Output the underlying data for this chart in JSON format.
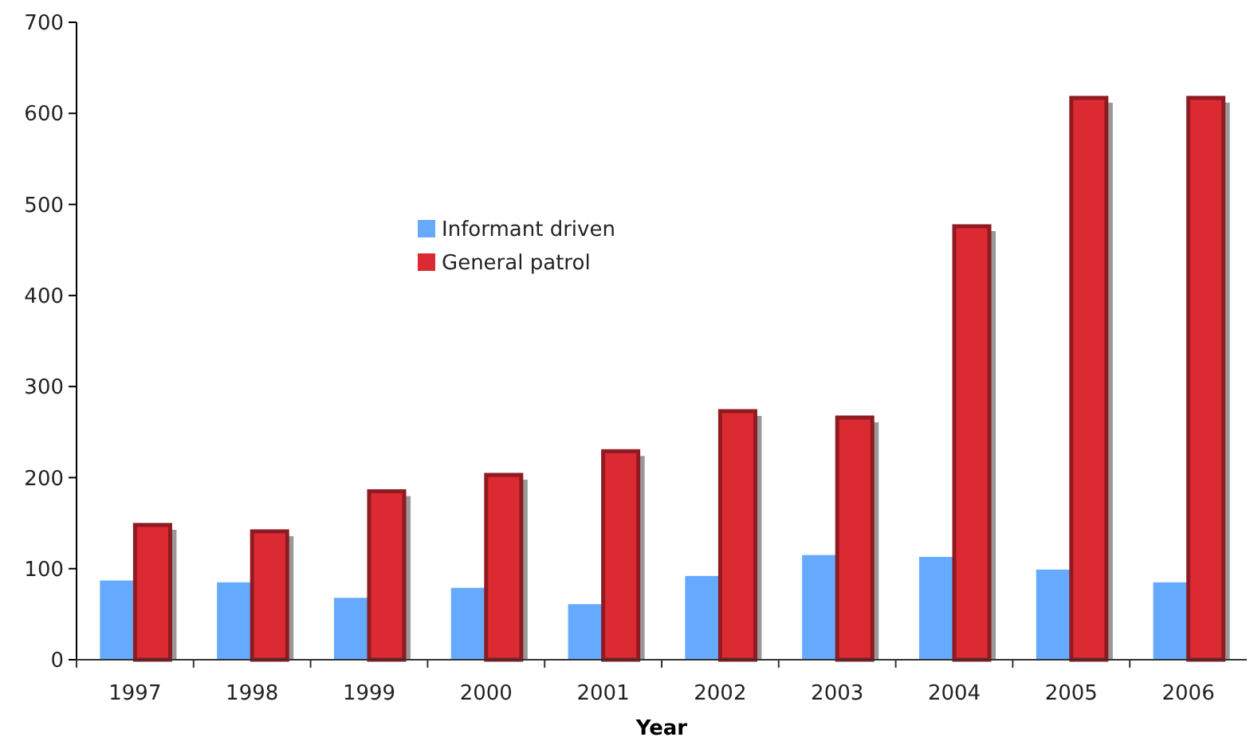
{
  "chart_data": {
    "type": "bar",
    "xlabel": "Year",
    "categories": [
      "1997",
      "1998",
      "1999",
      "2000",
      "2001",
      "2002",
      "2003",
      "2004",
      "2005",
      "2006"
    ],
    "series": [
      {
        "name": "Informant driven",
        "color": "#66aaff",
        "values": [
          87,
          85,
          68,
          79,
          61,
          92,
          115,
          113,
          99,
          85
        ]
      },
      {
        "name": "General patrol",
        "color": "#dc2a32",
        "values": [
          148,
          141,
          185,
          203,
          229,
          273,
          266,
          476,
          617,
          617
        ]
      }
    ],
    "ylim": [
      0,
      700
    ],
    "yticks": [
      0,
      100,
      200,
      300,
      400,
      500,
      600,
      700
    ],
    "grid": false,
    "legend": "center"
  }
}
